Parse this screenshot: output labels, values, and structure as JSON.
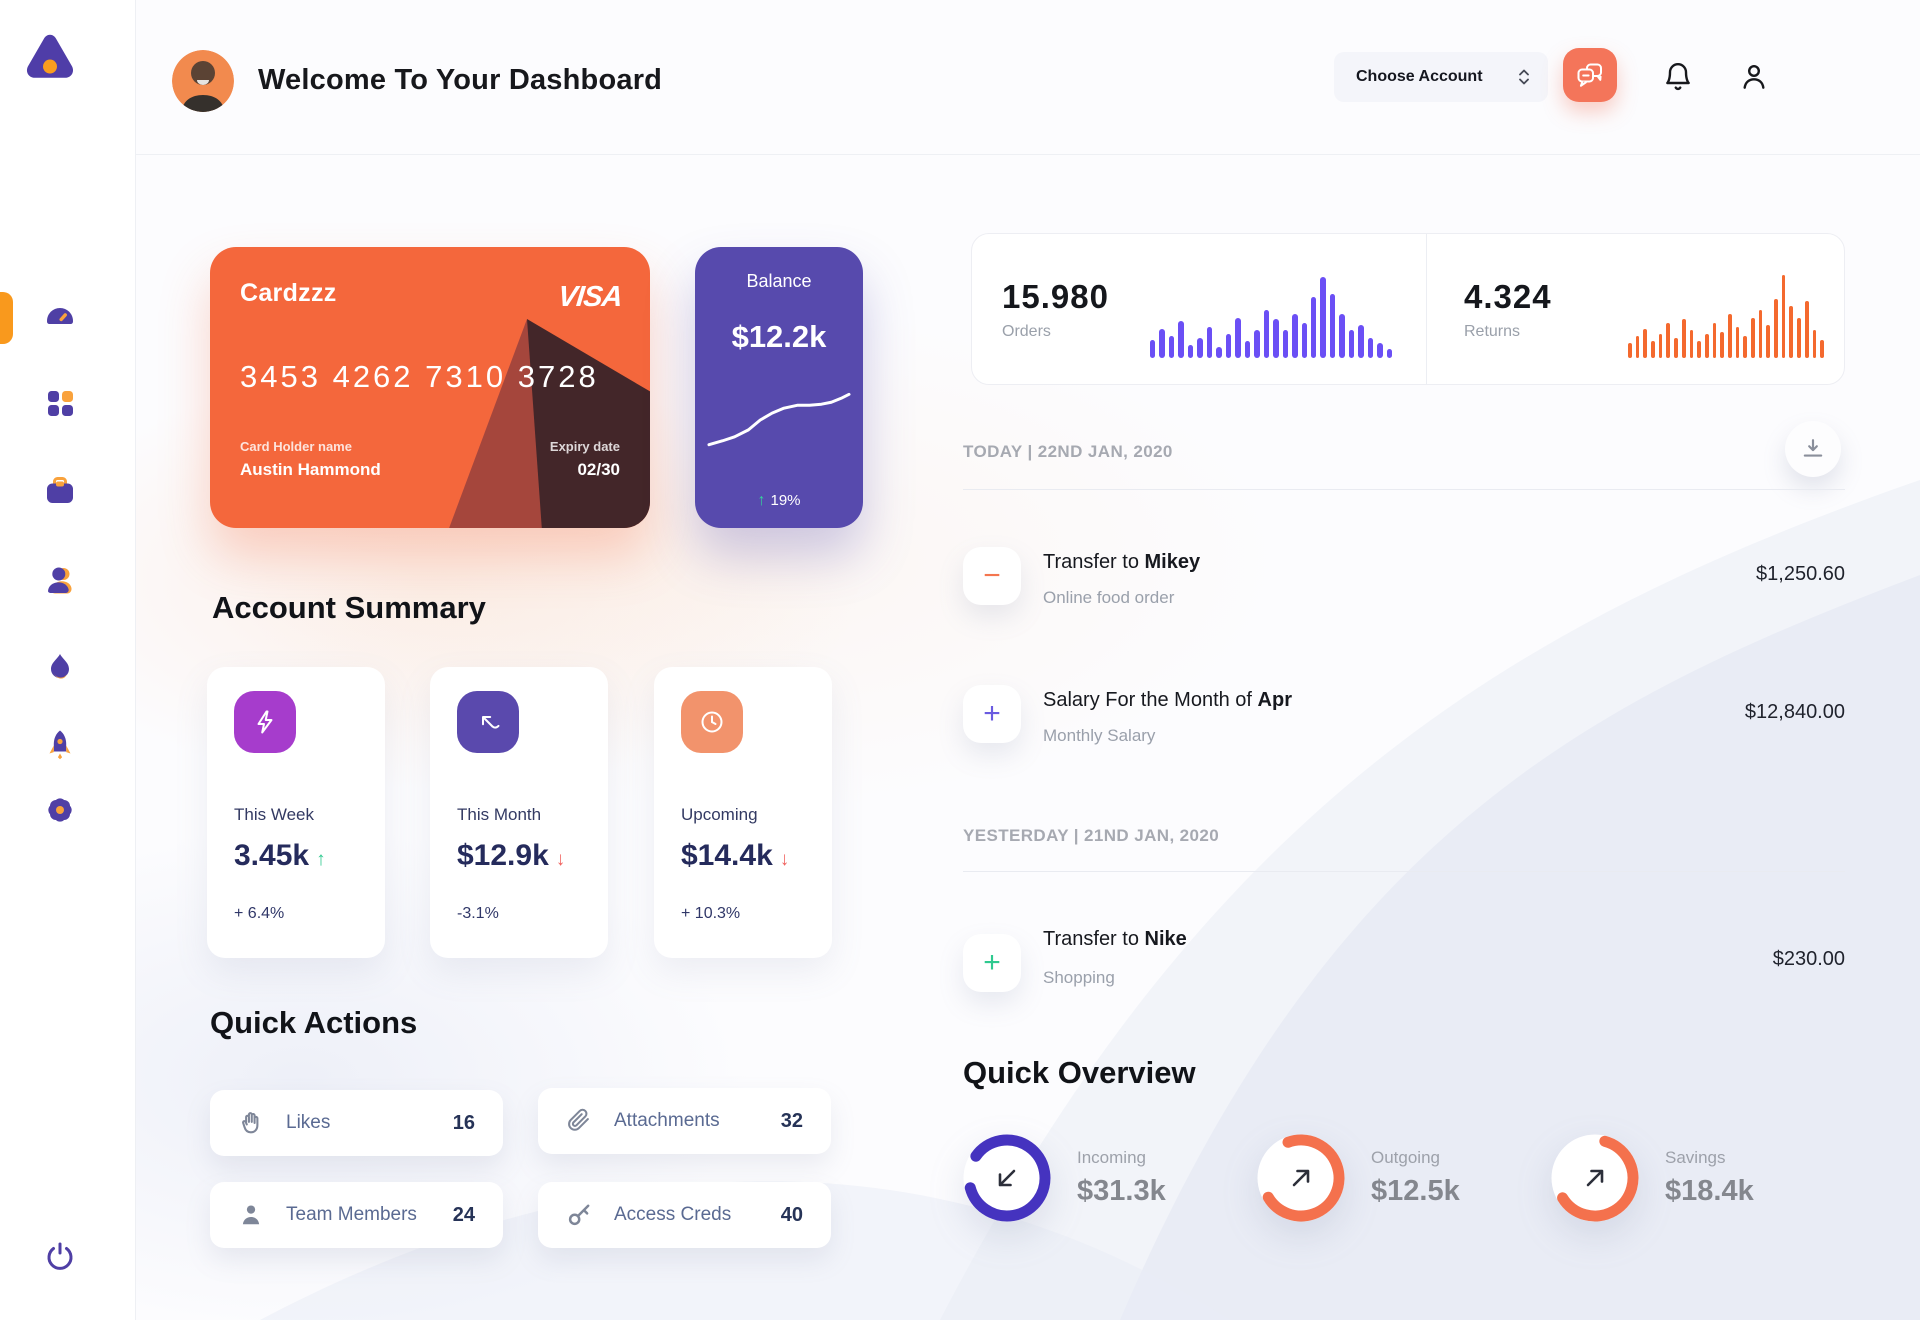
{
  "header": {
    "title": "Welcome To Your Dashboard",
    "account_select_label": "Choose Account"
  },
  "sidebar": {
    "items": [
      {
        "name": "dashboard",
        "active": true
      },
      {
        "name": "apps",
        "active": false
      },
      {
        "name": "projects",
        "active": false
      },
      {
        "name": "team",
        "active": false
      },
      {
        "name": "activity",
        "active": false
      },
      {
        "name": "launch",
        "active": false
      },
      {
        "name": "settings",
        "active": false
      }
    ],
    "logout": "power"
  },
  "credit_card": {
    "name": "Cardzzz",
    "brand": "VISA",
    "number": "3453 4262 7310 3728",
    "holder_label": "Card Holder name",
    "holder": "Austin Hammond",
    "expiry_label": "Expiry date",
    "expiry": "02/30"
  },
  "balance_card": {
    "label": "Balance",
    "value": "$12.2k",
    "trend_arrow": "↑",
    "trend_pct": "19%",
    "spark": [
      [
        4,
        56
      ],
      [
        18,
        52
      ],
      [
        30,
        48
      ],
      [
        44,
        41
      ],
      [
        56,
        31
      ],
      [
        68,
        24
      ],
      [
        80,
        19
      ],
      [
        94,
        16
      ],
      [
        106,
        16
      ],
      [
        118,
        15
      ],
      [
        128,
        13
      ],
      [
        138,
        9
      ],
      [
        146,
        5
      ]
    ]
  },
  "stats": {
    "orders": {
      "value": "15.980",
      "label": "Orders",
      "color": "#6b4ff5",
      "bars": [
        20,
        32,
        24,
        40,
        14,
        22,
        34,
        12,
        26,
        44,
        18,
        30,
        52,
        42,
        30,
        48,
        38,
        66,
        88,
        70,
        48,
        30,
        36,
        22,
        16,
        10
      ]
    },
    "returns": {
      "value": "4.324",
      "label": "Returns",
      "color": "#f4692e",
      "bars": [
        16,
        24,
        32,
        18,
        26,
        38,
        22,
        42,
        30,
        18,
        26,
        38,
        28,
        48,
        34,
        24,
        44,
        52,
        36,
        64,
        90,
        56,
        44,
        62,
        30,
        20
      ]
    }
  },
  "account_summary": {
    "heading": "Account Summary",
    "items": [
      {
        "icon": "lightning",
        "tile_color": "#a63ccc",
        "label": "This Week",
        "value": "3.45k",
        "trend_char": "↑",
        "trend_color": "#2fc98f",
        "delta": "+ 6.4%"
      },
      {
        "icon": "arrow-up-left",
        "tile_color": "#5a49ad",
        "label": "This Month",
        "value": "$12.9k",
        "trend_char": "↓",
        "trend_color": "#f0625f",
        "delta": "-3.1%"
      },
      {
        "icon": "clock",
        "tile_color": "#f2936c",
        "label": "Upcoming",
        "value": "$14.4k",
        "trend_char": "↓",
        "trend_color": "#f0625f",
        "delta": "+ 10.3%"
      }
    ]
  },
  "quick_actions": {
    "heading": "Quick Actions",
    "items": [
      {
        "icon": "wave-hand",
        "label": "Likes",
        "count": "16"
      },
      {
        "icon": "paperclip",
        "label": "Attachments",
        "count": "32"
      },
      {
        "icon": "person",
        "label": "Team Members",
        "count": "24"
      },
      {
        "icon": "key",
        "label": "Access Creds",
        "count": "40"
      }
    ]
  },
  "transactions": {
    "today_label": "TODAY | 22ND JAN, 2020",
    "yesterday_label": "YESTERDAY | 21ND JAN, 2020",
    "rows": [
      {
        "symbol": "−",
        "symbol_color": "#f4764f",
        "title_prefix": "Transfer to ",
        "title_bold": "Mikey",
        "subtitle": "Online food order",
        "amount": "$1,250.60"
      },
      {
        "symbol": "+",
        "symbol_color": "#6a5be0",
        "title_prefix": "Salary For the Month of ",
        "title_bold": "Apr",
        "subtitle": "Monthly Salary",
        "amount": "$12,840.00"
      },
      {
        "symbol": "+",
        "symbol_color": "#2fc98f",
        "title_prefix": "Transfer to ",
        "title_bold": "Nike",
        "subtitle": "Shopping",
        "amount": "$230.00"
      }
    ]
  },
  "quick_overview": {
    "heading": "Quick Overview",
    "items": [
      {
        "label": "Incoming",
        "value": "$31.3k",
        "arrow": "down-left",
        "ring": {
          "color": "#4533bf",
          "pct": 0.86,
          "rotate": 215
        }
      },
      {
        "label": "Outgoing",
        "value": "$12.5k",
        "arrow": "up-right",
        "ring": {
          "color": "#f4714d",
          "pct": 0.72,
          "rotate": 250
        }
      },
      {
        "label": "Savings",
        "value": "$18.4k",
        "arrow": "up-right",
        "ring": {
          "color": "#f4714d",
          "pct": 0.62,
          "rotate": 285
        }
      }
    ]
  }
}
